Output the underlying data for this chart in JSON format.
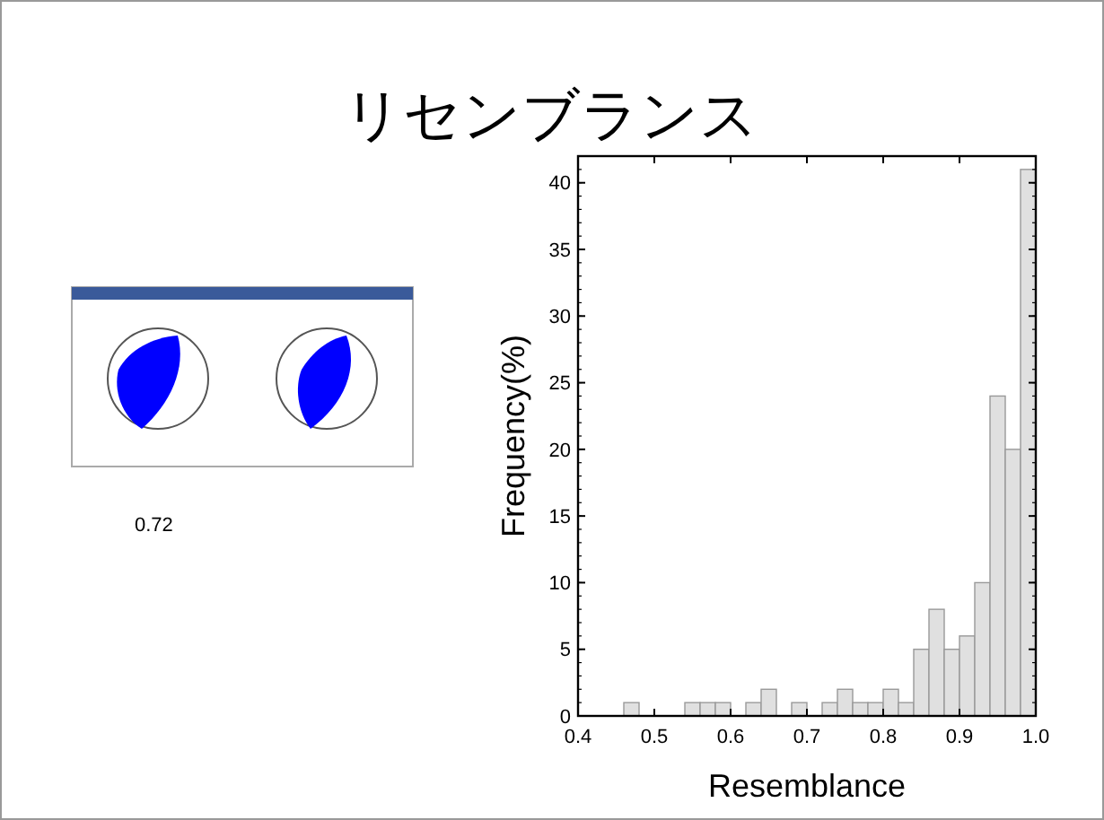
{
  "chart_data": {
    "type": "histogram",
    "title": "リセンブランス",
    "xlabel": "Resemblance",
    "ylabel": "Frequency(%)",
    "bins": [
      0.4,
      0.42,
      0.44,
      0.46,
      0.48,
      0.5,
      0.52,
      0.54,
      0.56,
      0.58,
      0.6,
      0.62,
      0.64,
      0.66,
      0.68,
      0.7,
      0.72,
      0.74,
      0.76,
      0.78,
      0.8,
      0.82,
      0.84,
      0.86,
      0.88,
      0.9,
      0.92,
      0.94,
      0.96,
      0.98,
      1.0
    ],
    "values": [
      0,
      0,
      0,
      1,
      0,
      0,
      0,
      1,
      1,
      1,
      0,
      1,
      2,
      0,
      1,
      0,
      1,
      2,
      1,
      1,
      2,
      1,
      5,
      8,
      5,
      6,
      10,
      24,
      20,
      41
    ],
    "color": "#e0e0e0",
    "xlim": [
      0.4,
      1.0
    ],
    "xticks": [
      0.4,
      0.5,
      0.6,
      0.7,
      0.8,
      0.9,
      {
        "value": 1.0,
        "label": "1.0"
      }
    ],
    "ylim": [
      0,
      42
    ],
    "yticks": [
      0,
      5,
      10,
      15,
      20,
      25,
      30,
      35,
      40
    ],
    "grid": false,
    "annotations": [
      "0.72"
    ]
  }
}
